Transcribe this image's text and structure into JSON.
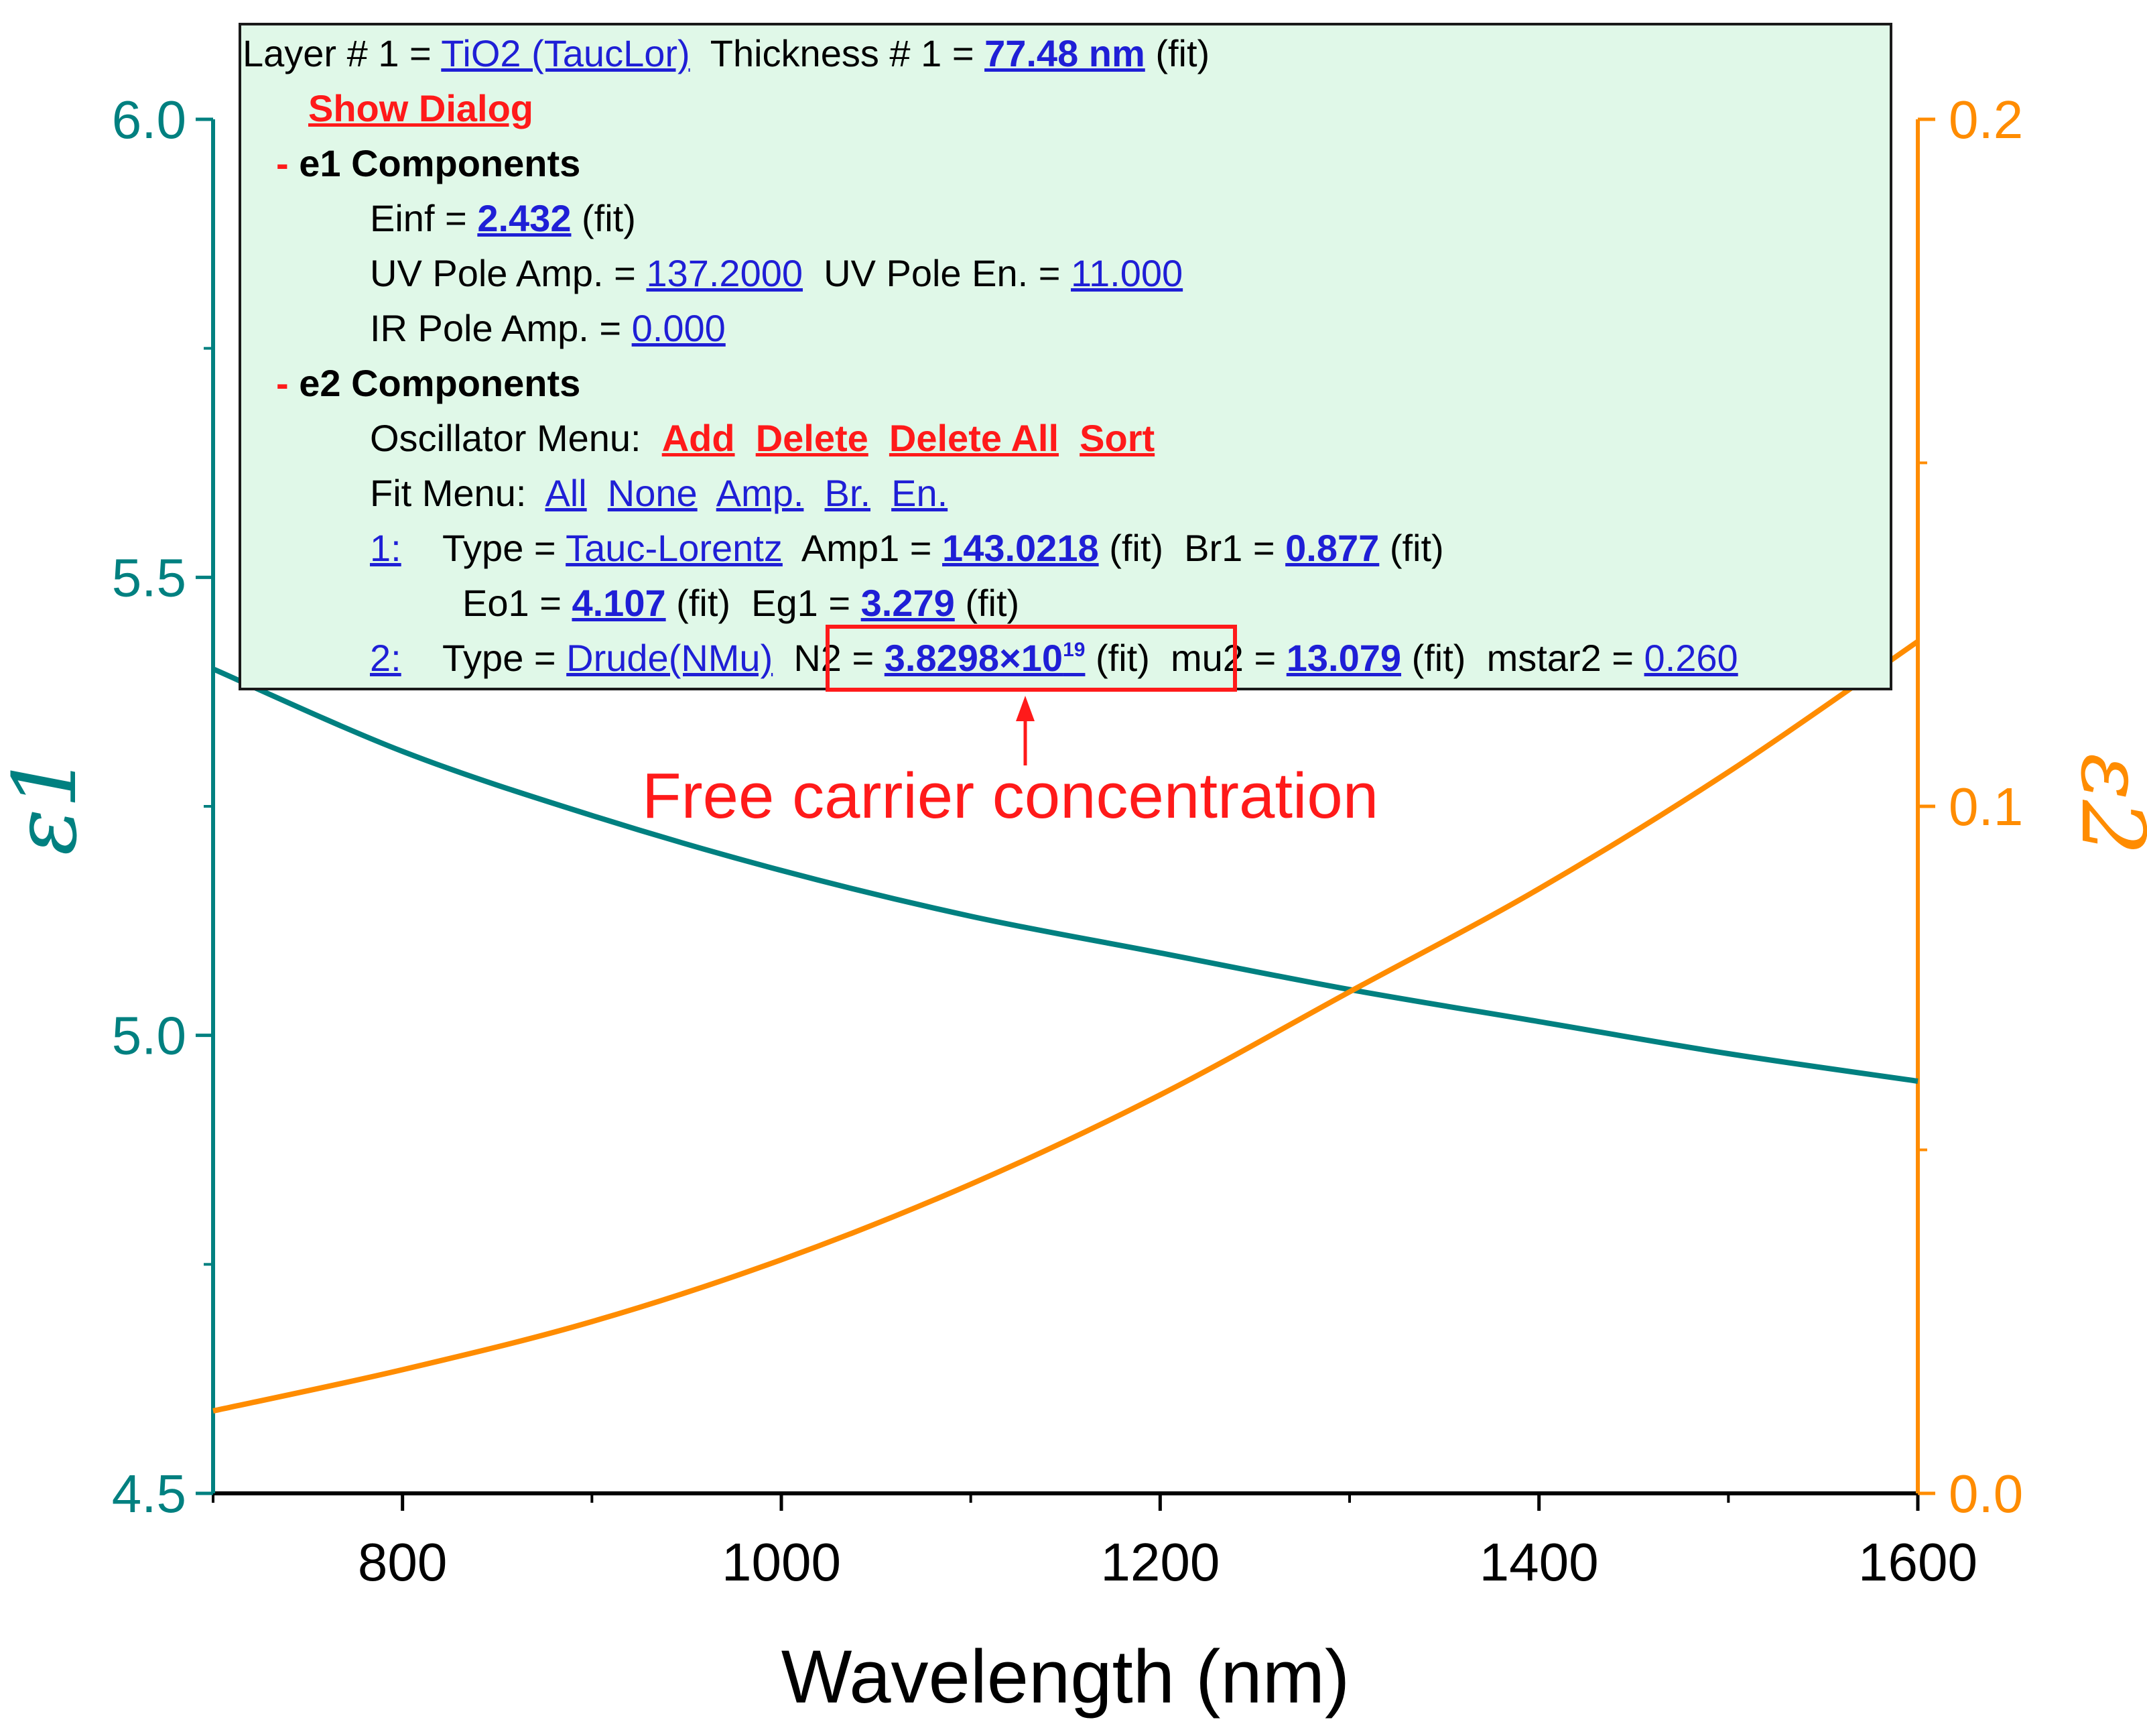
{
  "chart_data": {
    "type": "line",
    "xlabel": "Wavelength (nm)",
    "ylabel_left": "ε1",
    "ylabel_right": "ε2",
    "xlim": [
      700,
      1600
    ],
    "ylim_left": [
      4.5,
      6.0
    ],
    "ylim_right": [
      0.0,
      0.2
    ],
    "x_ticks": [
      800,
      1000,
      1200,
      1400,
      1600
    ],
    "y_left_ticks": [
      "4.5",
      "5.0",
      "5.5",
      "6.0"
    ],
    "y_right_ticks": [
      "0.0",
      "0.1",
      "0.2"
    ],
    "series": [
      {
        "name": "ε1",
        "axis": "left",
        "color": "#008080",
        "x": [
          700,
          800,
          900,
          1000,
          1100,
          1200,
          1300,
          1400,
          1500,
          1600
        ],
        "values": [
          5.4,
          5.31,
          5.24,
          5.18,
          5.13,
          5.09,
          5.05,
          5.015,
          4.98,
          4.95
        ]
      },
      {
        "name": "ε2",
        "axis": "right",
        "color": "#ff8c00",
        "x": [
          700,
          800,
          900,
          1000,
          1100,
          1200,
          1300,
          1400,
          1500,
          1600
        ],
        "values": [
          0.012,
          0.018,
          0.025,
          0.034,
          0.045,
          0.058,
          0.073,
          0.088,
          0.105,
          0.124
        ]
      }
    ]
  },
  "colors": {
    "left_axis": "#008080",
    "right_axis": "#ff8c00",
    "annotation": "#ff1a1a",
    "link": "#1f1fd6",
    "panel_bg": "#e0f8e8"
  },
  "panel": {
    "layer_label": "Layer # 1 =",
    "layer_material": "TiO2 (TaucLor)",
    "thickness_label": "Thickness # 1 =",
    "thickness_value": "77.48 nm",
    "fit_tag": "(fit)",
    "show_dialog": "Show Dialog",
    "dash": "-",
    "e1_header": "e1 Components",
    "einf_label": "Einf =",
    "einf_value": "2.432",
    "uv_amp_label": "UV Pole Amp. =",
    "uv_amp_value": "137.2000",
    "uv_en_label": "UV Pole En. =",
    "uv_en_value": "11.000",
    "ir_amp_label": "IR Pole Amp. =",
    "ir_amp_value": "0.000",
    "e2_header": "e2 Components",
    "osc_menu_label": "Oscillator Menu:",
    "osc_add": "Add",
    "osc_delete": "Delete",
    "osc_delete_all": "Delete All",
    "osc_sort": "Sort",
    "fit_menu_label": "Fit Menu:",
    "fit_all": "All",
    "fit_none": "None",
    "fit_amp": "Amp.",
    "fit_br": "Br.",
    "fit_en": "En.",
    "osc1_index": "1:",
    "type_label": "Type =",
    "osc1_type": "Tauc-Lorentz",
    "amp1_label": "Amp1 =",
    "amp1_value": "143.0218",
    "br1_label": "Br1 =",
    "br1_value": "0.877",
    "eo1_label": "Eo1 =",
    "eo1_value": "4.107",
    "eg1_label": "Eg1 =",
    "eg1_value": "3.279",
    "osc2_index": "2:",
    "osc2_type": "Drude(NMu)",
    "n2_label": "N2 =",
    "n2_mantissa": "3.8298×10",
    "n2_exponent": "19",
    "mu2_label": "mu2 =",
    "mu2_value": "13.079",
    "mstar2_label": "mstar2 =",
    "mstar2_value": "0.260"
  },
  "annotation": {
    "text": "Free carrier concentration"
  }
}
